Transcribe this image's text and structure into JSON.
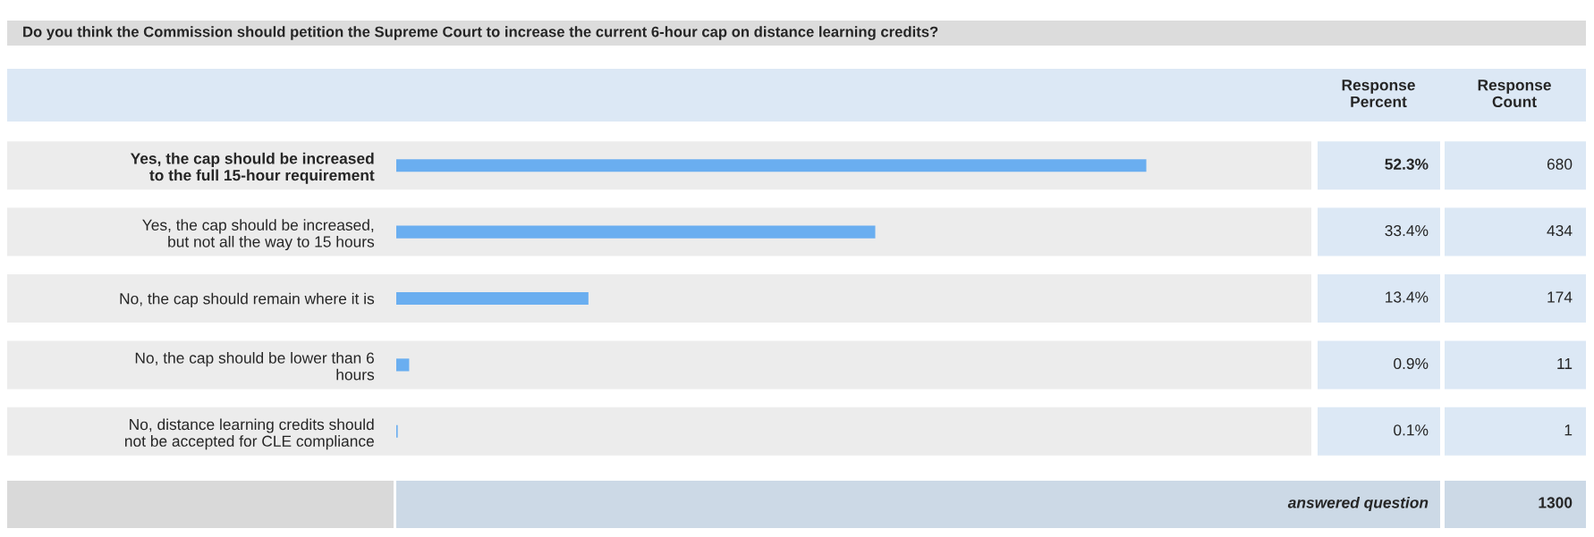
{
  "chart_data": {
    "type": "bar",
    "orientation": "horizontal",
    "title": "Do you think the Commission should petition the Supreme Court to increase the current 6-hour cap on distance learning credits?",
    "categories": [
      "Yes, the cap should be increased\nto the full 15-hour requirement",
      "Yes, the cap should be increased,\nbut not all the way to 15 hours",
      "No, the cap should remain where it is",
      "No, the cap should be lower than 6\nhours",
      "No, distance learning credits should\nnot be accepted for CLE compliance"
    ],
    "values": [
      52.3,
      33.4,
      13.4,
      0.9,
      0.1
    ],
    "color": "#6aaef0",
    "value_labels": [
      "52.3%",
      "33.4%",
      "13.4%",
      "0.9%",
      "0.1%"
    ],
    "annotations": [
      "Response\nPercent",
      "Response\nCount",
      "answered question",
      "1300",
      "680",
      "434",
      "174",
      "11",
      "1"
    ],
    "legend": false
  }
}
